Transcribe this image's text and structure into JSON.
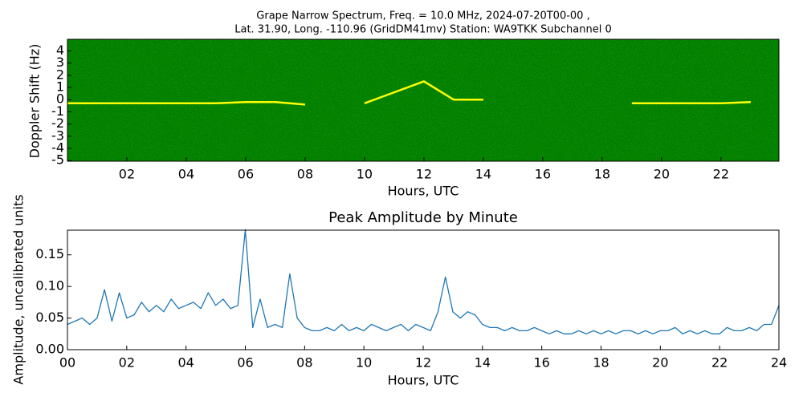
{
  "chart_data": [
    {
      "type": "spectrogram",
      "title": [
        "Grape Narrow Spectrum, Freq. = 10.0 MHz, 2024-07-20T00-00 ,",
        "Lat.  31.90, Long. -110.96 (GridDM41mv) Station: WA9TKK Subchannel 0"
      ],
      "x_label": "Hours, UTC",
      "y_label": "Doppler Shift (Hz)",
      "background": "#008000",
      "xlim": [
        0,
        23.95
      ],
      "ylim": [
        -5.05,
        4.95
      ],
      "xticks": [
        {
          "value": 2,
          "label": "02"
        },
        {
          "value": 4,
          "label": "04"
        },
        {
          "value": 6,
          "label": "06"
        },
        {
          "value": 8,
          "label": "08"
        },
        {
          "value": 10,
          "label": "10"
        },
        {
          "value": 12,
          "label": "12"
        },
        {
          "value": 14,
          "label": "14"
        },
        {
          "value": 16,
          "label": "16"
        },
        {
          "value": 18,
          "label": "18"
        },
        {
          "value": 20,
          "label": "20"
        },
        {
          "value": 22,
          "label": "22"
        }
      ],
      "yticks": [
        -5,
        -4,
        -3,
        -2,
        -1,
        0,
        1,
        2,
        3,
        4
      ],
      "x": [
        0,
        1,
        2,
        3,
        4,
        5,
        6,
        7,
        8,
        9,
        10,
        11,
        12,
        13,
        14,
        15,
        16,
        17,
        18,
        19,
        20,
        21,
        22,
        23
      ],
      "series": [
        {
          "color": "#ffff00",
          "values": [
            -0.3,
            -0.3,
            -0.3,
            -0.3,
            -0.3,
            -0.3,
            -0.2,
            -0.2,
            -0.4,
            null,
            -0.3,
            0.6,
            1.5,
            0.0,
            0.0,
            null,
            null,
            null,
            null,
            -0.3,
            -0.3,
            -0.3,
            -0.3,
            -0.2
          ]
        }
      ]
    },
    {
      "type": "line",
      "title": "Peak Amplitude by Minute",
      "x_label": "Hours, UTC",
      "y_label": "Amplitude, uncalibrated units",
      "xlim": [
        0,
        24
      ],
      "ylim": [
        0,
        0.189
      ],
      "xticks": [
        {
          "value": 0,
          "label": "00"
        },
        {
          "value": 2,
          "label": "02"
        },
        {
          "value": 4,
          "label": "04"
        },
        {
          "value": 6,
          "label": "06"
        },
        {
          "value": 8,
          "label": "08"
        },
        10,
        12,
        14,
        16,
        18,
        20,
        22,
        24
      ],
      "yticks": [
        {
          "value": 0,
          "label": "0.00"
        },
        {
          "value": 0.05,
          "label": "0.05"
        },
        {
          "value": 0.1,
          "label": "0.10"
        },
        {
          "value": 0.15,
          "label": "0.15"
        }
      ],
      "x": [
        0,
        0.25,
        0.5,
        0.75,
        1,
        1.25,
        1.5,
        1.75,
        2,
        2.25,
        2.5,
        2.75,
        3,
        3.25,
        3.5,
        3.75,
        4,
        4.25,
        4.5,
        4.75,
        5,
        5.25,
        5.5,
        5.75,
        6,
        6.25,
        6.5,
        6.75,
        7,
        7.25,
        7.5,
        7.75,
        8,
        8.25,
        8.5,
        8.75,
        9,
        9.25,
        9.5,
        9.75,
        10,
        10.25,
        10.5,
        10.75,
        11,
        11.25,
        11.5,
        11.75,
        12,
        12.25,
        12.5,
        12.75,
        13,
        13.25,
        13.5,
        13.75,
        14,
        14.25,
        14.5,
        14.75,
        15,
        15.25,
        15.5,
        15.75,
        16,
        16.25,
        16.5,
        16.75,
        17,
        17.25,
        17.5,
        17.75,
        18,
        18.25,
        18.5,
        18.75,
        19,
        19.25,
        19.5,
        19.75,
        20,
        20.25,
        20.5,
        20.75,
        21,
        21.25,
        21.5,
        21.75,
        22,
        22.25,
        22.5,
        22.75,
        23,
        23.25,
        23.5,
        23.75,
        24
      ],
      "series": [
        {
          "color": "#1f77b4",
          "values": [
            0.04,
            0.045,
            0.05,
            0.04,
            0.05,
            0.095,
            0.045,
            0.09,
            0.05,
            0.055,
            0.075,
            0.06,
            0.07,
            0.06,
            0.08,
            0.065,
            0.07,
            0.075,
            0.065,
            0.09,
            0.07,
            0.08,
            0.065,
            0.07,
            0.19,
            0.035,
            0.08,
            0.035,
            0.04,
            0.035,
            0.12,
            0.05,
            0.035,
            0.03,
            0.03,
            0.035,
            0.03,
            0.04,
            0.03,
            0.035,
            0.03,
            0.04,
            0.035,
            0.03,
            0.035,
            0.04,
            0.03,
            0.04,
            0.035,
            0.03,
            0.06,
            0.115,
            0.06,
            0.05,
            0.06,
            0.055,
            0.04,
            0.035,
            0.035,
            0.03,
            0.035,
            0.03,
            0.03,
            0.035,
            0.03,
            0.025,
            0.03,
            0.025,
            0.025,
            0.03,
            0.025,
            0.03,
            0.025,
            0.03,
            0.025,
            0.03,
            0.03,
            0.025,
            0.03,
            0.025,
            0.03,
            0.03,
            0.035,
            0.025,
            0.03,
            0.025,
            0.03,
            0.025,
            0.025,
            0.035,
            0.03,
            0.03,
            0.035,
            0.03,
            0.04,
            0.04,
            0.07
          ]
        }
      ]
    }
  ]
}
